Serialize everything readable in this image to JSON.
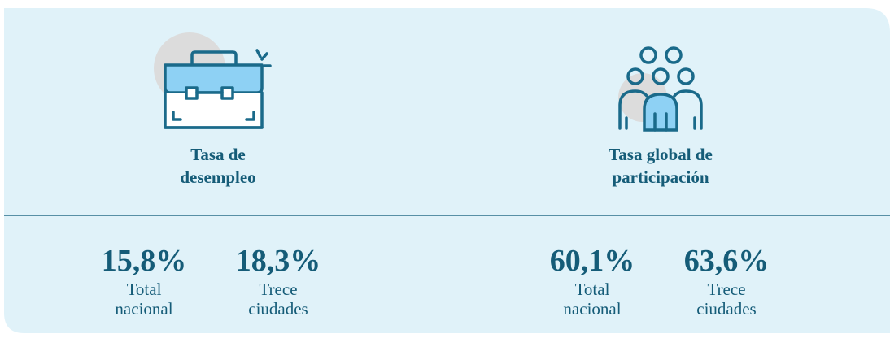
{
  "panels": [
    {
      "title": [
        "Tasa de",
        "desempleo"
      ],
      "stats": [
        {
          "value": "15,8%",
          "label": [
            "Total",
            "nacional"
          ]
        },
        {
          "value": "18,3%",
          "label": [
            "Trece",
            "ciudades"
          ]
        }
      ]
    },
    {
      "title": [
        "Tasa global de",
        "participación"
      ],
      "stats": [
        {
          "value": "60,1%",
          "label": [
            "Total",
            "nacional"
          ]
        },
        {
          "value": "63,6%",
          "label": [
            "Trece",
            "ciudades"
          ]
        }
      ]
    }
  ]
}
